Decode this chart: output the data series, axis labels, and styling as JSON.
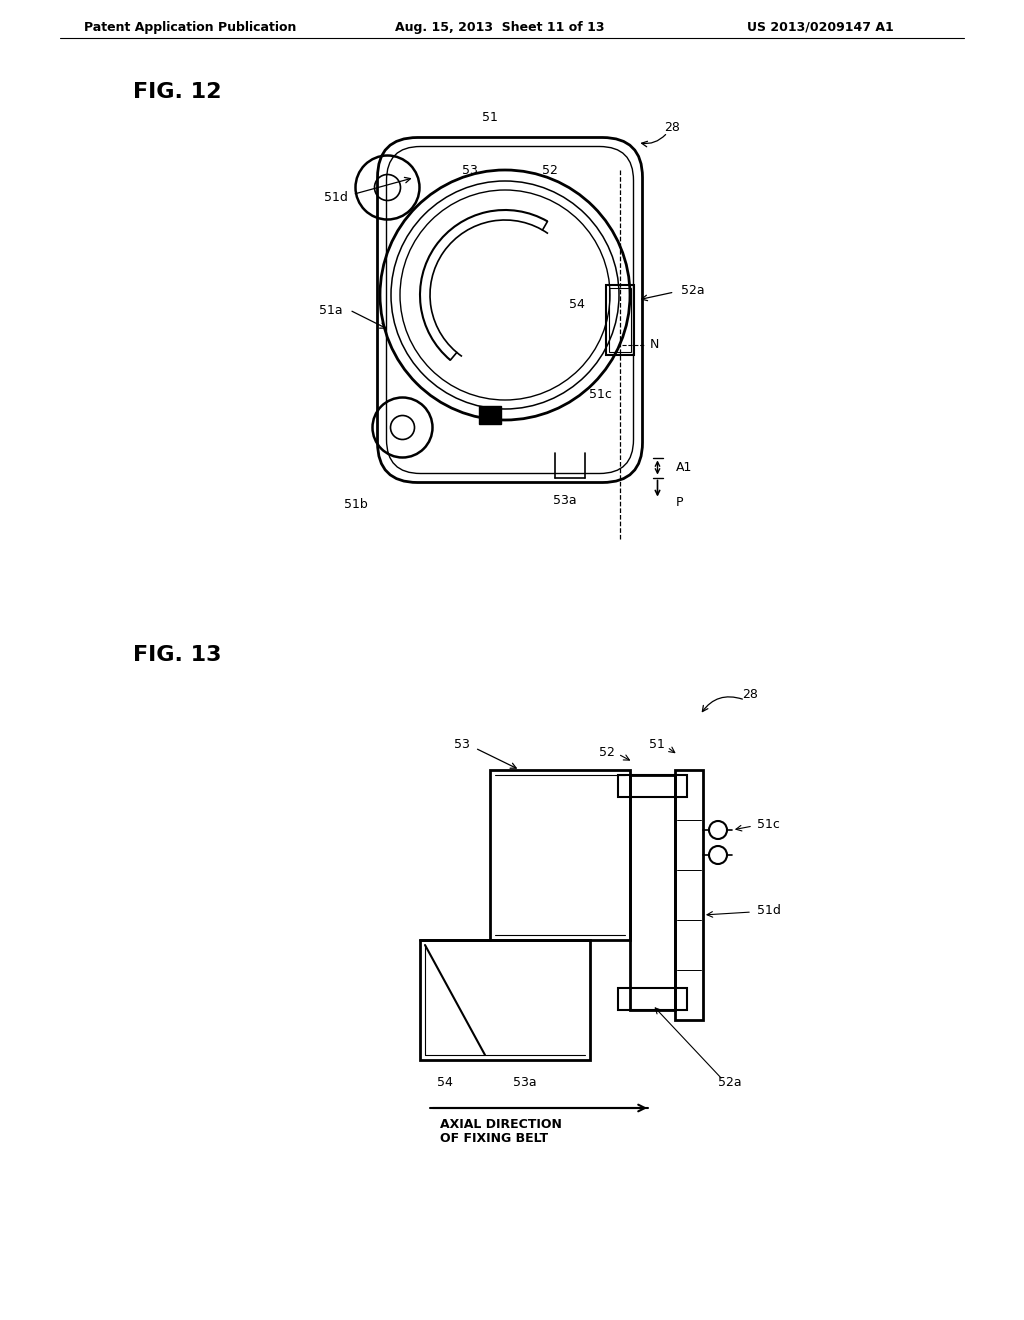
{
  "background_color": "#ffffff",
  "header_left": "Patent Application Publication",
  "header_center": "Aug. 15, 2013  Sheet 11 of 13",
  "header_right": "US 2013/0209147 A1",
  "fig12_label": "FIG. 12",
  "fig13_label": "FIG. 13",
  "line_color": "#000000",
  "text_color": "#000000"
}
